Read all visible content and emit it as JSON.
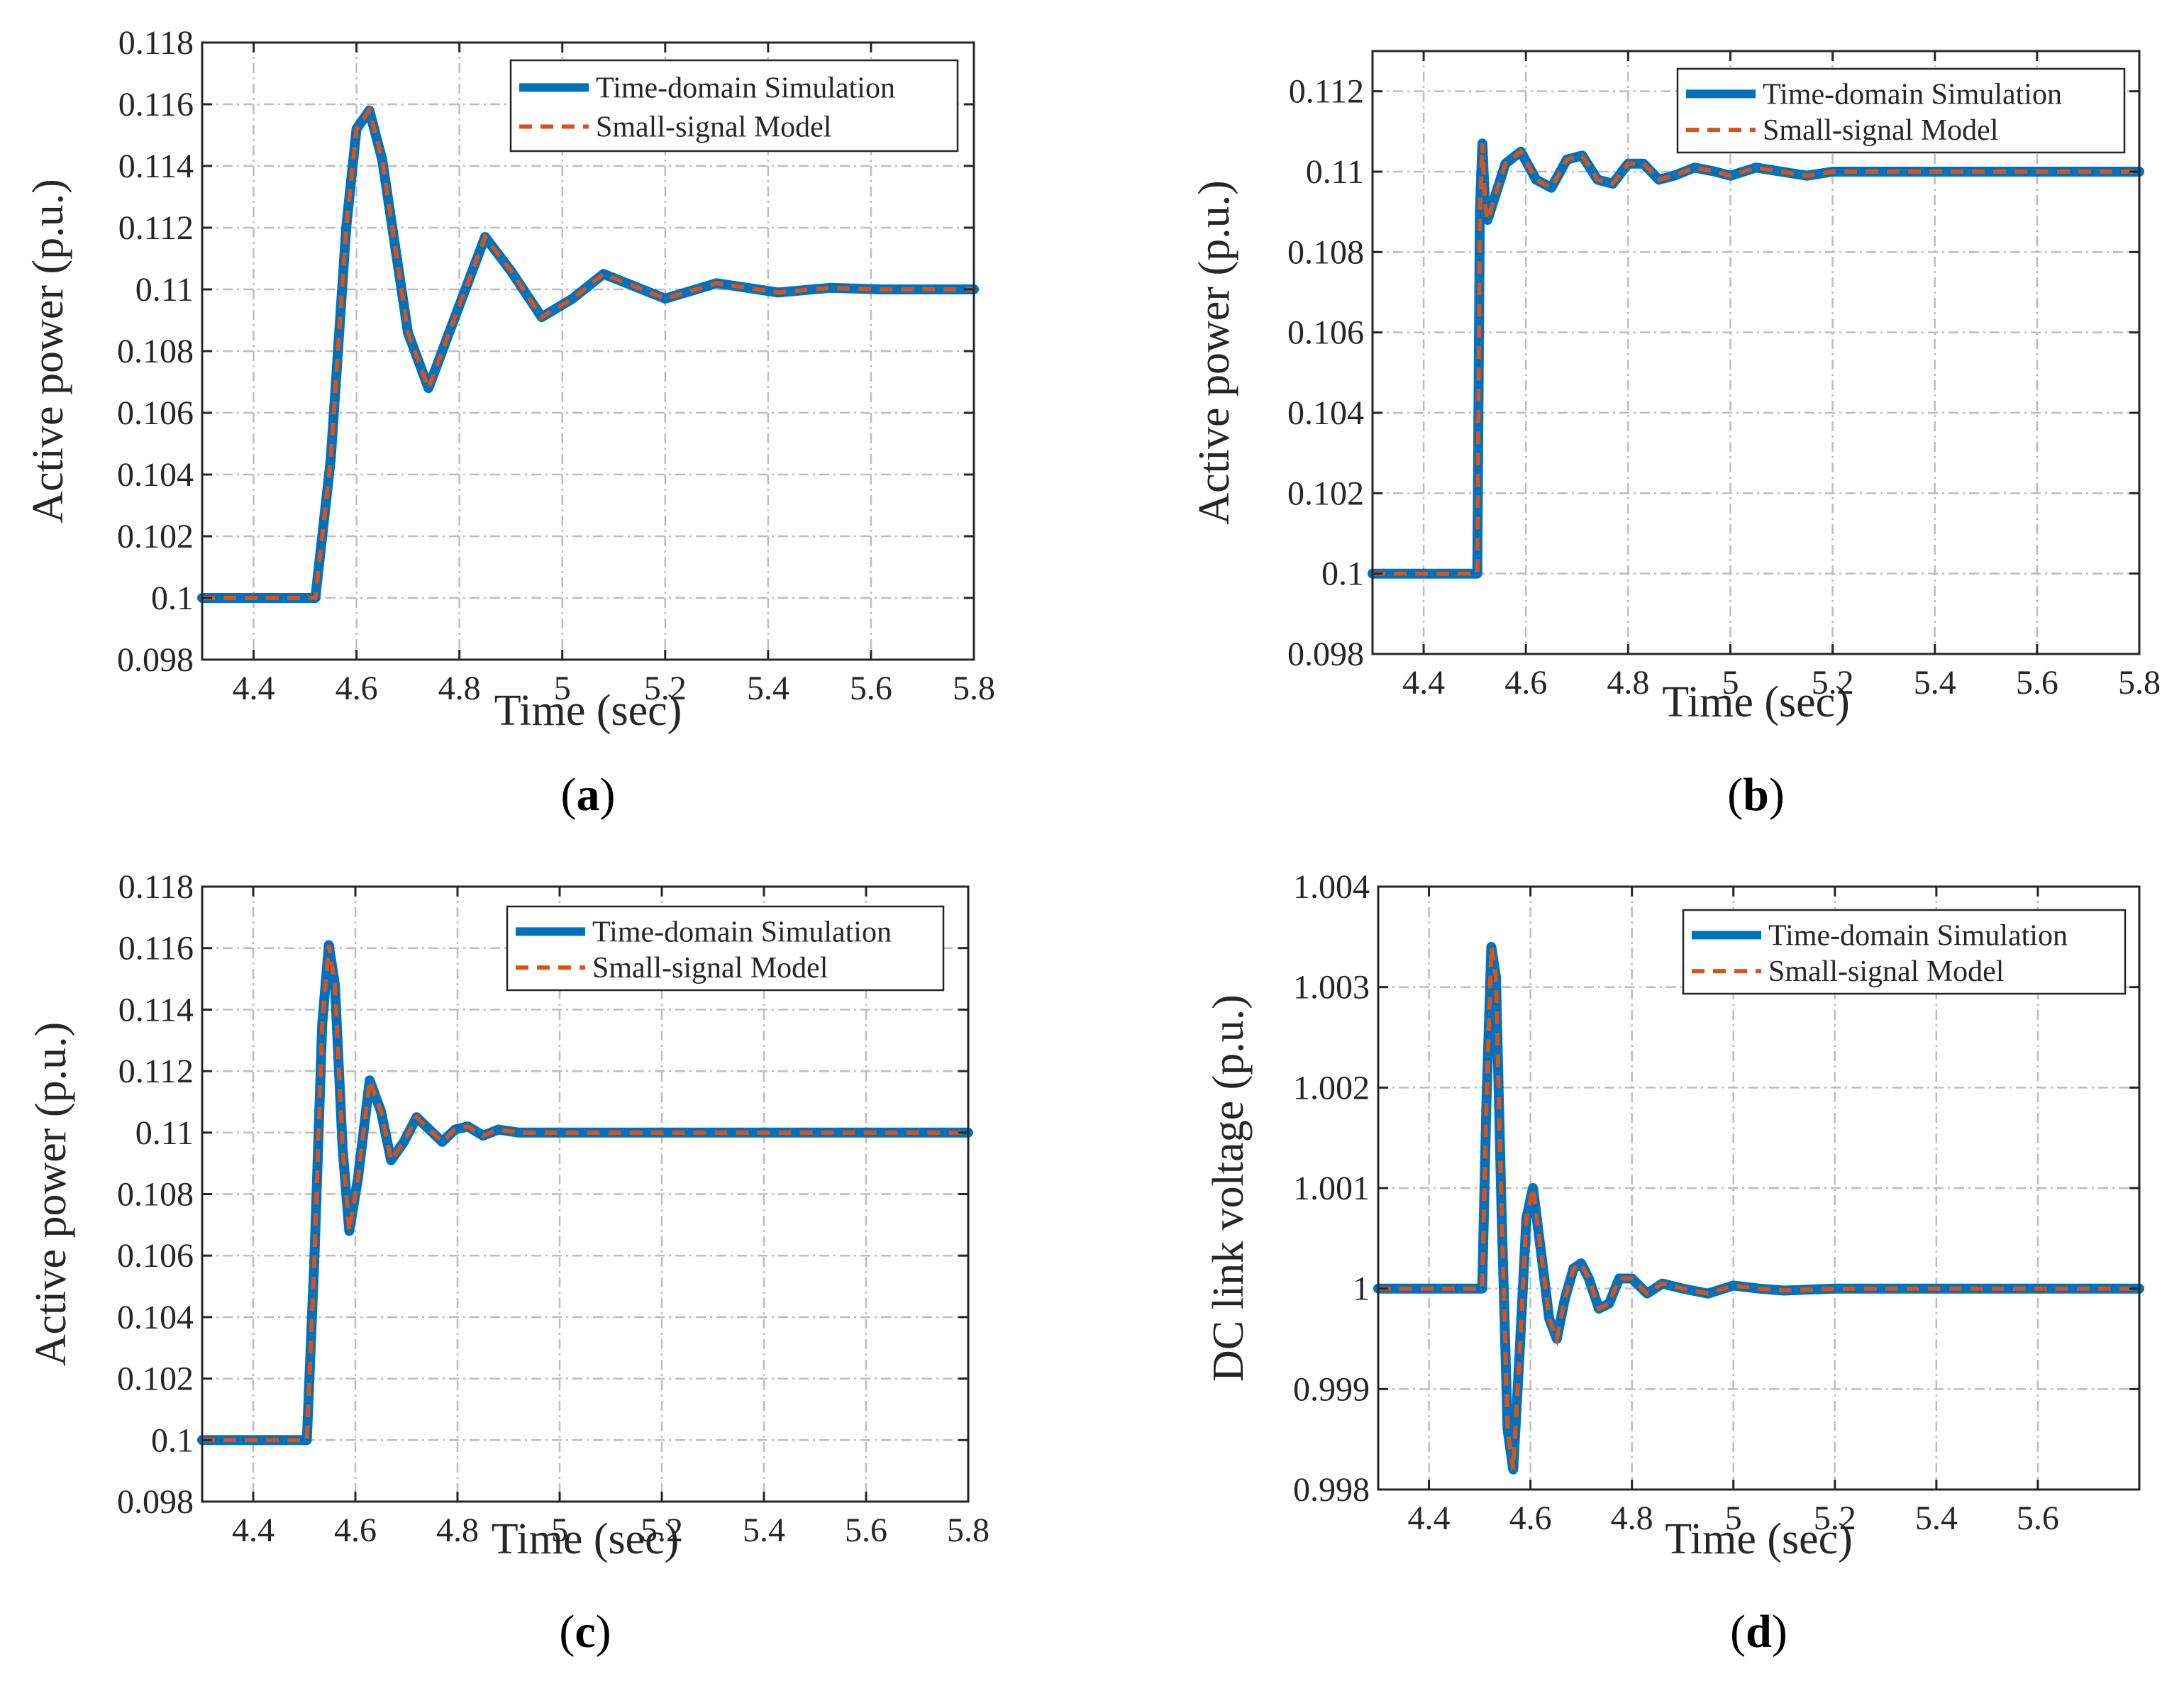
{
  "colors": {
    "simulation": "#0072BD",
    "small_signal": "#D95319",
    "grid": "#bdbdbd",
    "axes": "#262626"
  },
  "chart_data": [
    {
      "id": "a",
      "type": "line",
      "panel_label": "a",
      "xlabel": "Time (sec)",
      "ylabel": "Active power (p.u.)",
      "xlim": [
        4.3,
        5.8
      ],
      "ylim": [
        0.098,
        0.118
      ],
      "xticks": [
        4.4,
        4.6,
        4.8,
        5,
        5.2,
        5.4,
        5.6,
        5.8
      ],
      "xtick_labels": [
        "4.4",
        "4.6",
        "4.8",
        "5",
        "5.2",
        "5.4",
        "5.6",
        "5.8"
      ],
      "yticks": [
        0.098,
        0.1,
        0.102,
        0.104,
        0.106,
        0.108,
        0.11,
        0.112,
        0.114,
        0.116,
        0.118
      ],
      "ytick_labels": [
        "0.098",
        "0.1",
        "0.102",
        "0.104",
        "0.106",
        "0.108",
        "0.11",
        "0.112",
        "0.114",
        "0.116",
        "0.118"
      ],
      "legend": [
        "Time-domain Simulation",
        "Small-signal Model"
      ],
      "legend_position": "top-right",
      "series": [
        {
          "name": "Time-domain Simulation",
          "x": [
            4.3,
            4.52,
            4.55,
            4.58,
            4.6,
            4.625,
            4.65,
            4.7,
            4.74,
            4.78,
            4.85,
            4.9,
            4.96,
            5.02,
            5.08,
            5.14,
            5.2,
            5.3,
            5.42,
            5.52,
            5.62,
            5.8
          ],
          "y": [
            0.1,
            0.1,
            0.1045,
            0.112,
            0.1152,
            0.1158,
            0.1142,
            0.1086,
            0.1068,
            0.1086,
            0.1117,
            0.1106,
            0.1091,
            0.1097,
            0.1105,
            0.1101,
            0.1097,
            0.1102,
            0.1099,
            0.11005,
            0.11,
            0.11
          ]
        },
        {
          "name": "Small-signal Model",
          "x": [
            4.3,
            4.52,
            4.55,
            4.58,
            4.6,
            4.625,
            4.65,
            4.7,
            4.74,
            4.78,
            4.85,
            4.9,
            4.96,
            5.02,
            5.08,
            5.14,
            5.2,
            5.3,
            5.42,
            5.52,
            5.62,
            5.8
          ],
          "y": [
            0.1,
            0.1,
            0.1045,
            0.112,
            0.1152,
            0.1158,
            0.1142,
            0.1086,
            0.1068,
            0.1086,
            0.1117,
            0.1106,
            0.1091,
            0.1097,
            0.1105,
            0.1101,
            0.1097,
            0.1102,
            0.1099,
            0.11005,
            0.11,
            0.11
          ]
        }
      ]
    },
    {
      "id": "b",
      "type": "line",
      "panel_label": "b",
      "xlabel": "Time (sec)",
      "ylabel": "Active power (p.u.)",
      "xlim": [
        4.3,
        5.8
      ],
      "ylim": [
        0.098,
        0.113
      ],
      "xticks": [
        4.4,
        4.6,
        4.8,
        5,
        5.2,
        5.4,
        5.6,
        5.8
      ],
      "xtick_labels": [
        "4.4",
        "4.6",
        "4.8",
        "5",
        "5.2",
        "5.4",
        "5.6",
        "5.8"
      ],
      "yticks": [
        0.098,
        0.1,
        0.102,
        0.104,
        0.106,
        0.108,
        0.11,
        0.112
      ],
      "ytick_labels": [
        "0.098",
        "0.1",
        "0.102",
        "0.104",
        "0.106",
        "0.108",
        "0.11",
        "0.112"
      ],
      "legend": [
        "Time-domain Simulation",
        "Small-signal Model"
      ],
      "legend_position": "top-right",
      "series": [
        {
          "name": "Time-domain Simulation",
          "x": [
            4.3,
            4.505,
            4.51,
            4.515,
            4.52,
            4.525,
            4.535,
            4.56,
            4.59,
            4.62,
            4.65,
            4.68,
            4.71,
            4.74,
            4.77,
            4.8,
            4.83,
            4.86,
            4.89,
            4.93,
            4.97,
            5.0,
            5.05,
            5.1,
            5.15,
            5.2,
            5.3,
            5.4,
            5.5,
            5.6,
            5.8
          ],
          "y": [
            0.1,
            0.1,
            0.109,
            0.1107,
            0.1092,
            0.1088,
            0.1092,
            0.1102,
            0.1105,
            0.1098,
            0.1096,
            0.1103,
            0.1104,
            0.1098,
            0.1097,
            0.1102,
            0.1102,
            0.1098,
            0.1099,
            0.1101,
            0.11,
            0.1099,
            0.1101,
            0.11,
            0.1099,
            0.11,
            0.11,
            0.11,
            0.11,
            0.11,
            0.11
          ]
        },
        {
          "name": "Small-signal Model",
          "x": [
            4.3,
            4.505,
            4.51,
            4.515,
            4.52,
            4.525,
            4.535,
            4.56,
            4.59,
            4.62,
            4.65,
            4.68,
            4.71,
            4.74,
            4.77,
            4.8,
            4.83,
            4.86,
            4.89,
            4.93,
            4.97,
            5.0,
            5.05,
            5.1,
            5.15,
            5.2,
            5.3,
            5.4,
            5.5,
            5.6,
            5.8
          ],
          "y": [
            0.1,
            0.1,
            0.109,
            0.1107,
            0.1092,
            0.1088,
            0.1092,
            0.1102,
            0.1105,
            0.1098,
            0.1096,
            0.1103,
            0.1104,
            0.1098,
            0.1097,
            0.1102,
            0.1102,
            0.1098,
            0.1099,
            0.1101,
            0.11,
            0.1099,
            0.1101,
            0.11,
            0.1099,
            0.11,
            0.11,
            0.11,
            0.11,
            0.11,
            0.11
          ]
        }
      ]
    },
    {
      "id": "c",
      "type": "line",
      "panel_label": "c",
      "xlabel": "Time (sec)",
      "ylabel": "Active power (p.u.)",
      "xlim": [
        4.3,
        5.8
      ],
      "ylim": [
        0.098,
        0.118
      ],
      "xticks": [
        4.4,
        4.6,
        4.8,
        5,
        5.2,
        5.4,
        5.6,
        5.8
      ],
      "xtick_labels": [
        "4.4",
        "4.6",
        "4.8",
        "5",
        "5.2",
        "5.4",
        "5.6",
        "5.8"
      ],
      "yticks": [
        0.098,
        0.1,
        0.102,
        0.104,
        0.106,
        0.108,
        0.11,
        0.112,
        0.114,
        0.116,
        0.118
      ],
      "ytick_labels": [
        "0.098",
        "0.1",
        "0.102",
        "0.104",
        "0.106",
        "0.108",
        "0.11",
        "0.112",
        "0.114",
        "0.116",
        "0.118"
      ],
      "legend": [
        "Time-domain Simulation",
        "Small-signal Model"
      ],
      "legend_position": "top-right",
      "series": [
        {
          "name": "Time-domain Simulation",
          "x": [
            4.3,
            4.505,
            4.52,
            4.535,
            4.548,
            4.56,
            4.575,
            4.588,
            4.605,
            4.628,
            4.65,
            4.67,
            4.695,
            4.72,
            4.745,
            4.77,
            4.795,
            4.82,
            4.85,
            4.88,
            4.92,
            5.0,
            5.1,
            5.8
          ],
          "y": [
            0.1,
            0.1,
            0.106,
            0.1135,
            0.1161,
            0.1148,
            0.1095,
            0.1068,
            0.1085,
            0.1117,
            0.1107,
            0.1091,
            0.1097,
            0.1105,
            0.1101,
            0.1097,
            0.1101,
            0.1102,
            0.1099,
            0.1101,
            0.11,
            0.11,
            0.11,
            0.11
          ]
        },
        {
          "name": "Small-signal Model",
          "x": [
            4.3,
            4.505,
            4.52,
            4.535,
            4.548,
            4.56,
            4.575,
            4.588,
            4.605,
            4.628,
            4.65,
            4.67,
            4.695,
            4.72,
            4.745,
            4.77,
            4.795,
            4.82,
            4.85,
            4.88,
            4.92,
            5.0,
            5.1,
            5.8
          ],
          "y": [
            0.1,
            0.1,
            0.106,
            0.1135,
            0.1161,
            0.1148,
            0.1095,
            0.1068,
            0.1085,
            0.1117,
            0.1107,
            0.1091,
            0.1097,
            0.1105,
            0.1101,
            0.1097,
            0.1101,
            0.1102,
            0.1099,
            0.1101,
            0.11,
            0.11,
            0.11,
            0.11
          ]
        }
      ]
    },
    {
      "id": "d",
      "type": "line",
      "panel_label": "d",
      "xlabel": "Time (sec)",
      "ylabel": "DC link voltage (p.u.)",
      "xlim": [
        4.3,
        5.8
      ],
      "ylim": [
        0.998,
        1.004
      ],
      "xticks": [
        4.4,
        4.6,
        4.8,
        5,
        5.2,
        5.4,
        5.6
      ],
      "xtick_labels": [
        "4.4",
        "4.6",
        "4.8",
        "5",
        "5.2",
        "5.4",
        "5.6"
      ],
      "yticks": [
        0.998,
        0.999,
        1.0,
        1.001,
        1.002,
        1.003,
        1.004
      ],
      "ytick_labels": [
        "0.998",
        "0.999",
        "1",
        "1.001",
        "1.002",
        "1.003",
        "1.004"
      ],
      "legend": [
        "Time-domain Simulation",
        "Small-signal Model"
      ],
      "legend_position": "top-right",
      "series": [
        {
          "name": "Time-domain Simulation",
          "x": [
            4.3,
            4.505,
            4.513,
            4.523,
            4.532,
            4.543,
            4.555,
            4.566,
            4.578,
            4.592,
            4.605,
            4.62,
            4.637,
            4.652,
            4.668,
            4.685,
            4.7,
            4.715,
            4.735,
            4.755,
            4.775,
            4.8,
            4.83,
            4.86,
            4.9,
            4.95,
            5.0,
            5.05,
            5.1,
            5.2,
            5.3,
            5.4,
            5.5,
            5.6,
            5.8
          ],
          "y": [
            1.0,
            1.0,
            1.0018,
            1.0034,
            1.0031,
            1.0008,
            0.9986,
            0.9982,
            0.9993,
            1.0007,
            1.001,
            1.0004,
            0.9997,
            0.9995,
            0.9999,
            1.0002,
            1.00025,
            1.0001,
            0.9998,
            0.99985,
            1.0001,
            1.0001,
            0.99995,
            1.00005,
            1.0,
            0.99995,
            1.00003,
            1.0,
            0.99998,
            1.0,
            1.0,
            1.0,
            1.0,
            1.0,
            1.0
          ]
        },
        {
          "name": "Small-signal Model",
          "x": [
            4.3,
            4.505,
            4.513,
            4.523,
            4.532,
            4.543,
            4.555,
            4.566,
            4.578,
            4.592,
            4.605,
            4.62,
            4.637,
            4.652,
            4.668,
            4.685,
            4.7,
            4.715,
            4.735,
            4.755,
            4.775,
            4.8,
            4.83,
            4.86,
            4.9,
            4.95,
            5.0,
            5.05,
            5.1,
            5.2,
            5.3,
            5.4,
            5.5,
            5.6,
            5.8
          ],
          "y": [
            1.0,
            1.0,
            1.0018,
            1.0034,
            1.0031,
            1.0008,
            0.9986,
            0.9982,
            0.9993,
            1.0007,
            1.001,
            1.0004,
            0.9997,
            0.9995,
            0.9999,
            1.0002,
            1.00025,
            1.0001,
            0.9998,
            0.99985,
            1.0001,
            1.0001,
            0.99995,
            1.00005,
            1.0,
            0.99995,
            1.00003,
            1.0,
            0.99998,
            1.0,
            1.0,
            1.0,
            1.0,
            1.0,
            1.0
          ]
        }
      ]
    }
  ]
}
